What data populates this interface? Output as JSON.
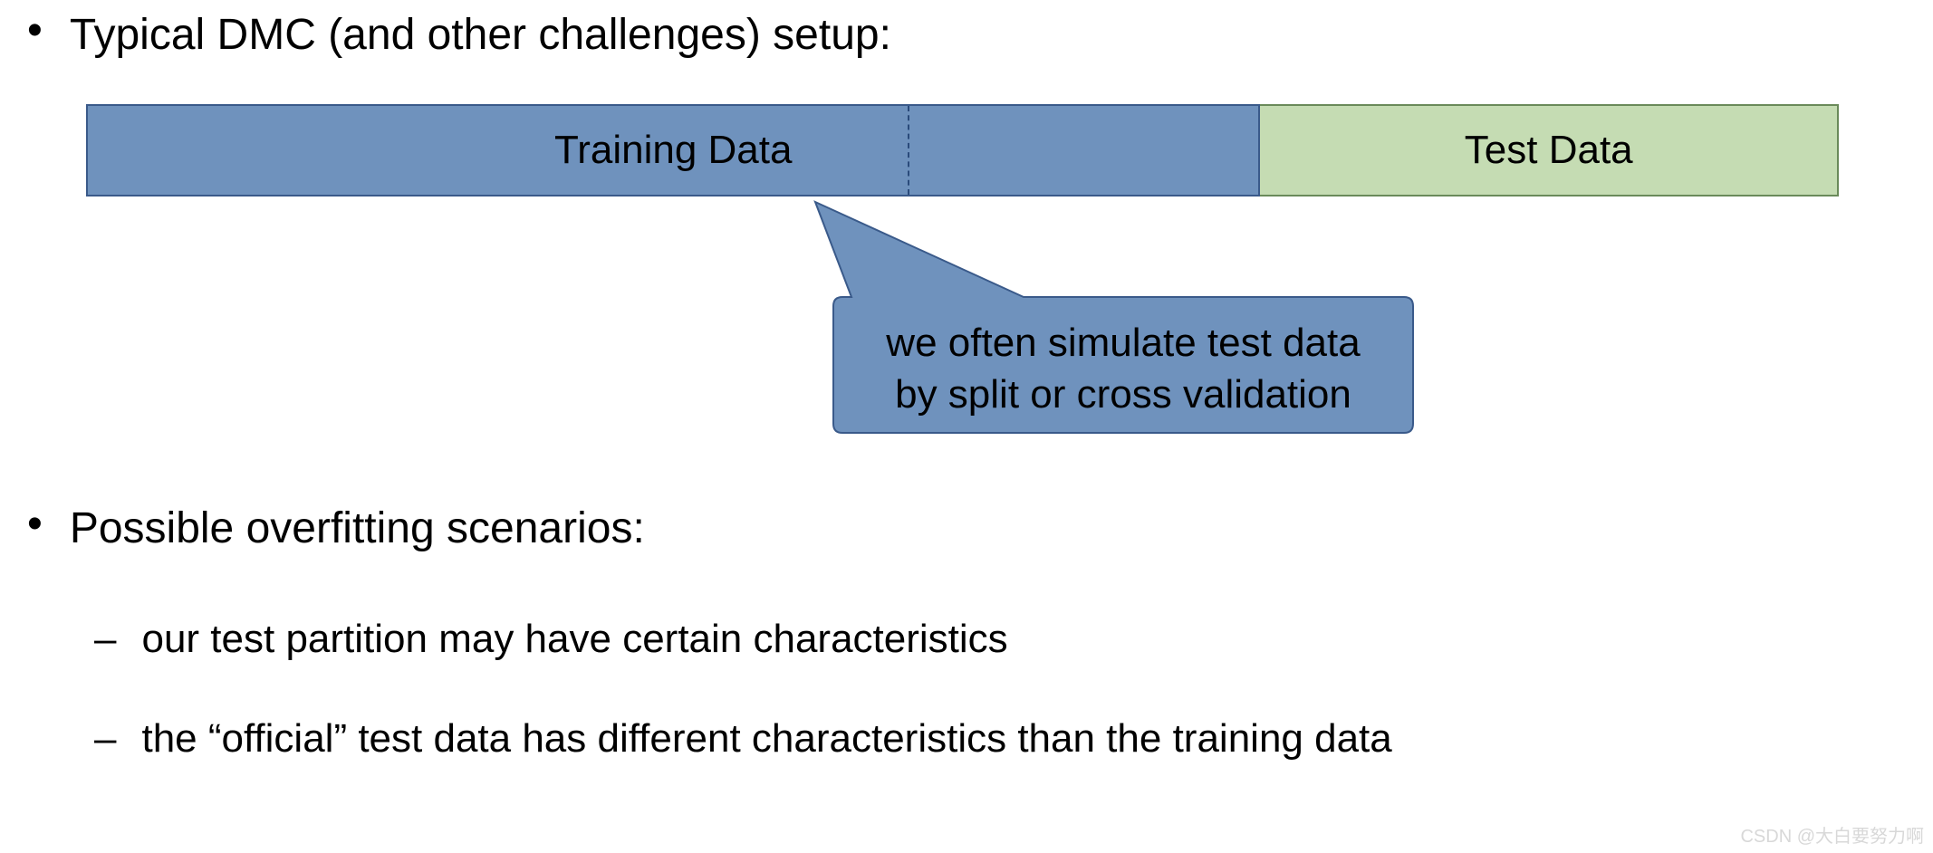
{
  "bullet1": {
    "text": "Typical DMC (and other challenges) setup:"
  },
  "diagram": {
    "training_label": "Training Data",
    "test_label": "Test Data",
    "training_fill": "#6f92bd",
    "training_border": "#3a5a8a",
    "test_fill": "#c5dcb3",
    "test_border": "#6a8a5a",
    "split_position_pct": 70,
    "callout_line1": "we often simulate test data",
    "callout_line2": "by split or cross validation",
    "callout_fill": "#6f92bd",
    "callout_border": "#3a5a8a"
  },
  "bullet2": {
    "text": "Possible overfitting scenarios:"
  },
  "sub1": {
    "text": "our test partition may have certain characteristics"
  },
  "sub2": {
    "text": "the “official” test data has different characteristics than the training data"
  },
  "watermark": "CSDN @大白要努力啊"
}
